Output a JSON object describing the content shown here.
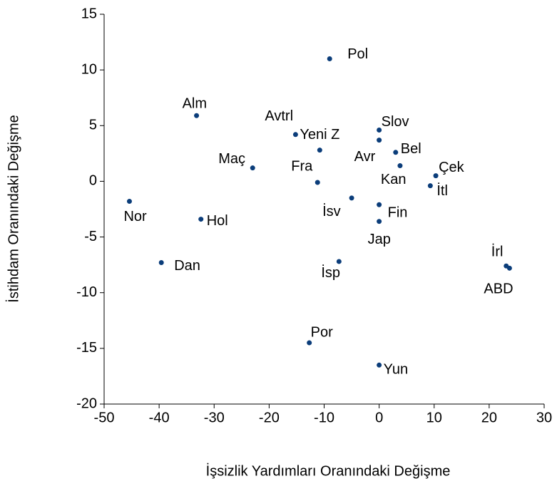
{
  "chart_data": {
    "type": "scatter",
    "xlabel": "İşsizlik Yardımları Oranındaki Değişme",
    "ylabel": "İstihdam Oranındaki Değişme",
    "labels": [
      "Pol",
      "Alm",
      "Avtrl",
      "Yeni Z",
      "Maç",
      "Fra",
      "Slov",
      "Avr",
      "Bel",
      "Kan",
      "Çek",
      "İtl",
      "İsv",
      "Fin",
      "Jap",
      "Nor",
      "Hol",
      "Dan",
      "İsp",
      "İrl",
      "ABD",
      "Por",
      "Yun"
    ],
    "x": [
      -9.0,
      -33.2,
      -15.2,
      -10.8,
      -23.0,
      -11.2,
      0,
      0,
      3.0,
      3.8,
      10.3,
      9.3,
      -5.0,
      0,
      0,
      -45.4,
      -32.4,
      -39.6,
      -7.3,
      23.1,
      23.7,
      -12.7,
      0
    ],
    "values": [
      11.0,
      5.9,
      4.2,
      2.8,
      1.2,
      -0.1,
      4.6,
      3.7,
      2.6,
      1.4,
      0.5,
      -0.4,
      -1.5,
      -2.1,
      -3.6,
      -1.8,
      -3.4,
      -7.3,
      -7.2,
      -7.6,
      -7.8,
      -14.5,
      -16.5
    ],
    "color": "#0b3d7a",
    "xlim": [
      -50,
      30
    ],
    "xticks": [
      -50,
      -40,
      -30,
      -20,
      -10,
      0,
      10,
      20,
      30
    ],
    "ylim": [
      -20,
      15
    ],
    "yticks": [
      -20,
      -15,
      -10,
      -5,
      0,
      5,
      10,
      15
    ]
  }
}
